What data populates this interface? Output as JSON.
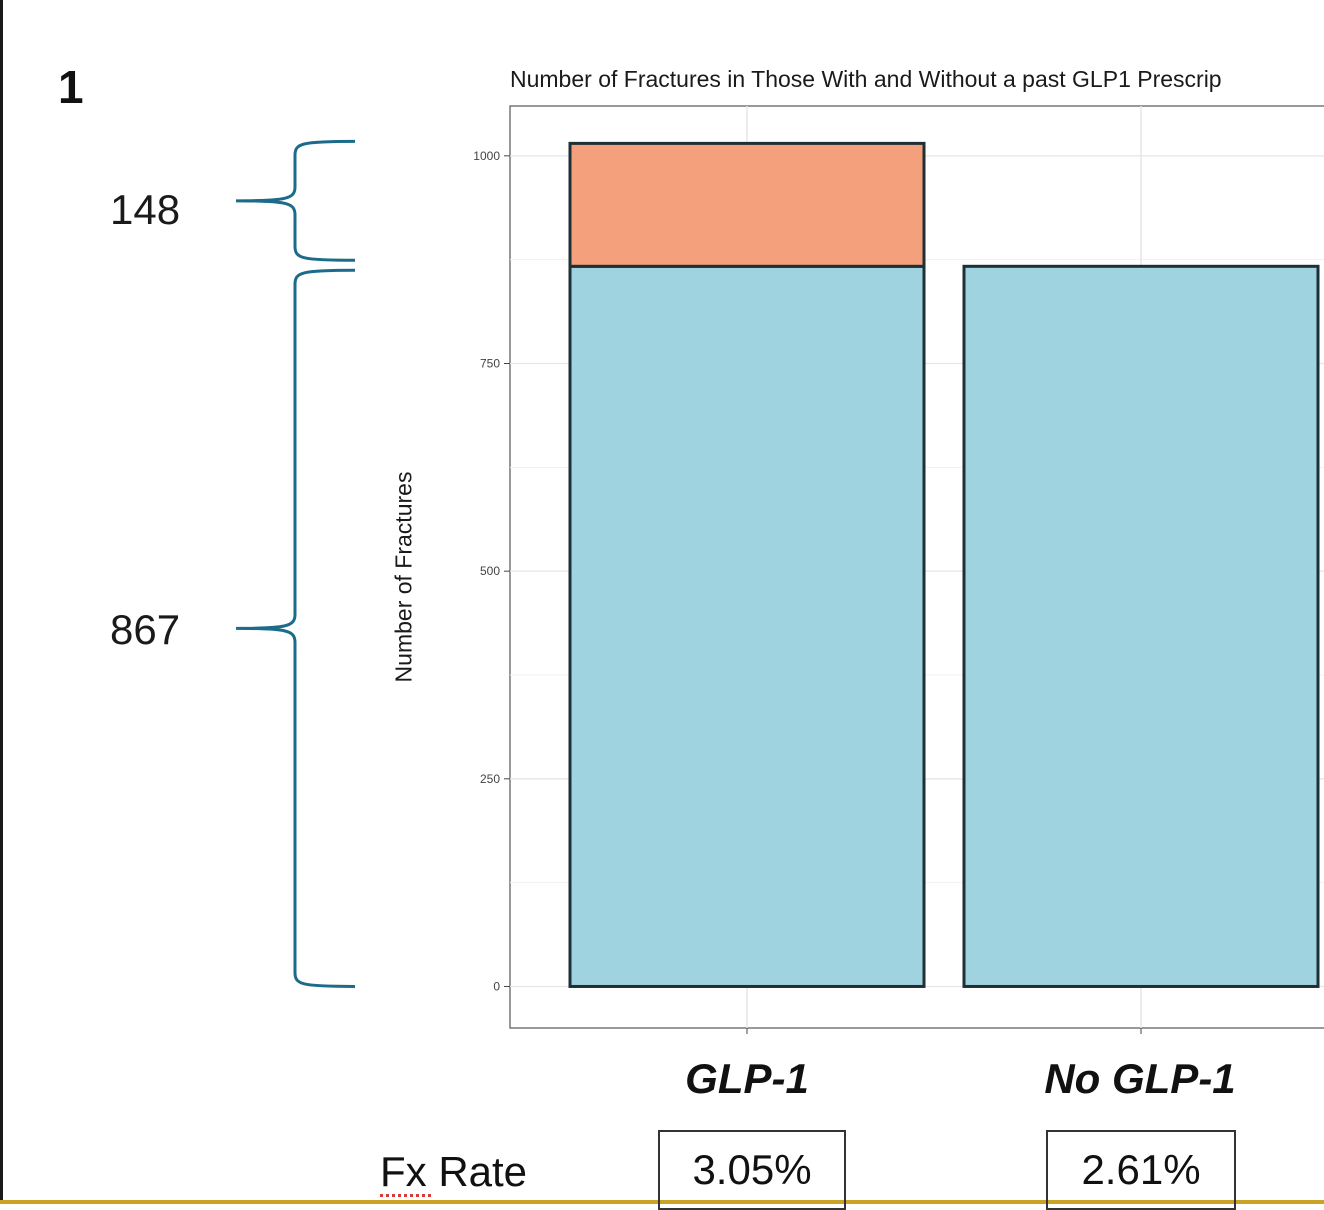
{
  "panel_label": "1",
  "colors": {
    "bar_base": "#a0d3e0",
    "bar_extra": "#f4a07c",
    "bar_outline": "#1f2f36",
    "brace": "#1c6b8a",
    "grid": "#e6e6e6"
  },
  "chart_data": {
    "type": "bar",
    "title": "Number of Fractures in Those With and Without a past GLP1 Prescrip",
    "ylabel": "Number of Fractures",
    "xlabel": "",
    "categories": [
      "GLP-1",
      "No GLP-1"
    ],
    "series": [
      {
        "values": [
          867,
          867
        ]
      },
      {
        "values": [
          148,
          0
        ]
      }
    ],
    "ylim": [
      -50,
      1060
    ],
    "yticks": [
      0,
      250,
      500,
      750,
      1000
    ],
    "grid": true,
    "stacked": true
  },
  "annotations": {
    "brace_top_value": "148",
    "brace_bottom_value": "867"
  },
  "fx_rate": {
    "label": "Fx Rate",
    "values": [
      "3.05%",
      "2.61%"
    ]
  }
}
